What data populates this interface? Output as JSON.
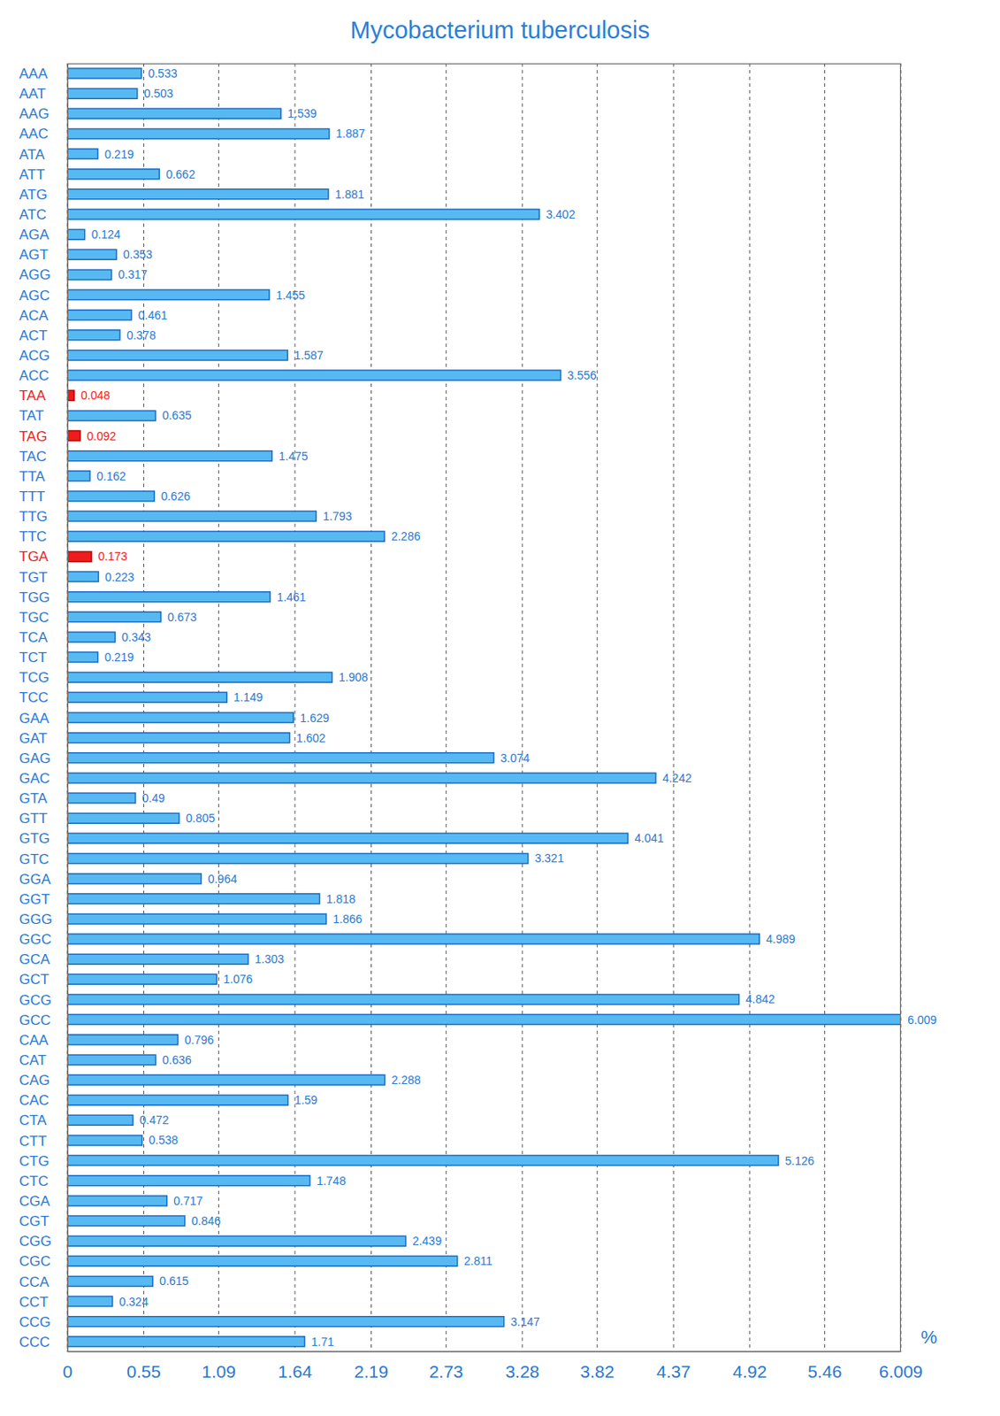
{
  "chart_data": {
    "type": "bar",
    "title": "Mycobacterium tuberculosis",
    "xlabel": "%",
    "orientation": "horizontal",
    "categories": [
      "AAA",
      "AAT",
      "AAG",
      "AAC",
      "ATA",
      "ATT",
      "ATG",
      "ATC",
      "AGA",
      "AGT",
      "AGG",
      "AGC",
      "ACA",
      "ACT",
      "ACG",
      "ACC",
      "TAA",
      "TAT",
      "TAG",
      "TAC",
      "TTA",
      "TTT",
      "TTG",
      "TTC",
      "TGA",
      "TGT",
      "TGG",
      "TGC",
      "TCA",
      "TCT",
      "TCG",
      "TCC",
      "GAA",
      "GAT",
      "GAG",
      "GAC",
      "GTA",
      "GTT",
      "GTG",
      "GTC",
      "GGA",
      "GGT",
      "GGG",
      "GGC",
      "GCA",
      "GCT",
      "GCG",
      "GCC",
      "CAA",
      "CAT",
      "CAG",
      "CAC",
      "CTA",
      "CTT",
      "CTG",
      "CTC",
      "CGA",
      "CGT",
      "CGG",
      "CGC",
      "CCA",
      "CCT",
      "CCG",
      "CCC"
    ],
    "values": [
      0.533,
      0.503,
      1.539,
      1.887,
      0.219,
      0.662,
      1.881,
      3.402,
      0.124,
      0.353,
      0.317,
      1.455,
      0.461,
      0.378,
      1.587,
      3.556,
      0.048,
      0.635,
      0.092,
      1.475,
      0.162,
      0.626,
      1.793,
      2.286,
      0.173,
      0.223,
      1.461,
      0.673,
      0.343,
      0.219,
      1.908,
      1.149,
      1.629,
      1.602,
      3.074,
      4.242,
      0.49,
      0.805,
      4.041,
      3.321,
      0.964,
      1.818,
      1.866,
      4.989,
      1.303,
      1.076,
      4.842,
      6.009,
      0.796,
      0.636,
      2.288,
      1.59,
      0.472,
      0.538,
      5.126,
      1.748,
      0.717,
      0.846,
      2.439,
      2.811,
      0.615,
      0.324,
      3.147,
      1.71
    ],
    "color": "#57b9f2",
    "colors": [
      "#57b9f2",
      "#57b9f2",
      "#57b9f2",
      "#57b9f2",
      "#57b9f2",
      "#57b9f2",
      "#57b9f2",
      "#57b9f2",
      "#57b9f2",
      "#57b9f2",
      "#57b9f2",
      "#57b9f2",
      "#57b9f2",
      "#57b9f2",
      "#57b9f2",
      "#57b9f2",
      "#ee1c1c",
      "#57b9f2",
      "#ee1c1c",
      "#57b9f2",
      "#57b9f2",
      "#57b9f2",
      "#57b9f2",
      "#57b9f2",
      "#ee1c1c",
      "#57b9f2",
      "#57b9f2",
      "#57b9f2",
      "#57b9f2",
      "#57b9f2",
      "#57b9f2",
      "#57b9f2",
      "#57b9f2",
      "#57b9f2",
      "#57b9f2",
      "#57b9f2",
      "#57b9f2",
      "#57b9f2",
      "#57b9f2",
      "#57b9f2",
      "#57b9f2",
      "#57b9f2",
      "#57b9f2",
      "#57b9f2",
      "#57b9f2",
      "#57b9f2",
      "#57b9f2",
      "#57b9f2",
      "#57b9f2",
      "#57b9f2",
      "#57b9f2",
      "#57b9f2",
      "#57b9f2",
      "#57b9f2",
      "#57b9f2",
      "#57b9f2",
      "#57b9f2",
      "#57b9f2",
      "#57b9f2",
      "#57b9f2",
      "#57b9f2",
      "#57b9f2",
      "#57b9f2",
      "#57b9f2"
    ],
    "xlim": [
      0,
      6.009
    ],
    "xticks": [
      0,
      0.55,
      1.09,
      1.64,
      2.19,
      2.73,
      3.28,
      3.82,
      4.37,
      4.92,
      5.46,
      6.009
    ],
    "grid": true,
    "data_labels": true
  }
}
